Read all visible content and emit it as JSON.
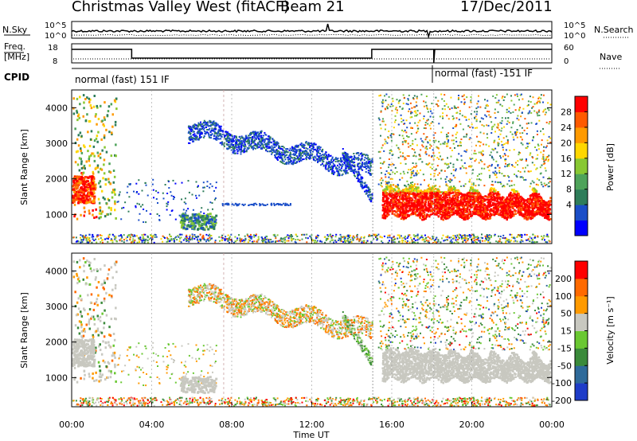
{
  "header": {
    "station": "Christmas Valley West (fitACF)",
    "beam": "Beam 21",
    "date": "17/Dec/2011"
  },
  "top_panels": {
    "nsky_label": "N.Sky",
    "nsearch_label": "N.Search",
    "noise_ticks": [
      "10^5",
      "10^0"
    ],
    "freq_label_1": "Freq.",
    "freq_label_2": "[MHz]",
    "freq_ticks": [
      "18",
      "8"
    ],
    "nave_label": "Nave",
    "nave_ticks": [
      "60",
      "0"
    ],
    "cpid_label": "CPID",
    "mode_1": "normal (fast) 151 IF",
    "mode_2": "normal (fast) -151 IF"
  },
  "chart_data": [
    {
      "type": "heatmap",
      "name": "power",
      "ylabel": "Slant Range [km]",
      "ylim": [
        180,
        4500
      ],
      "yticks": [
        "4000",
        "3000",
        "2000",
        "1000"
      ],
      "xlim": [
        "00:00",
        "24:00"
      ],
      "colorbar_label": "Power [dB]",
      "colorbar_ticks": [
        "28",
        "24",
        "20",
        "16",
        "12",
        "8",
        "4"
      ],
      "colorbar_colors": [
        "#0000ff",
        "#1a4ec8",
        "#2e7d5a",
        "#4ea35a",
        "#88c832",
        "#ffd700",
        "#ff9a00",
        "#ff5a00",
        "#ff0000"
      ]
    },
    {
      "type": "heatmap",
      "name": "velocity",
      "ylabel": "Slant Range [km]",
      "ylim": [
        180,
        4500
      ],
      "yticks": [
        "4000",
        "3000",
        "2000",
        "1000"
      ],
      "xlim": [
        "00:00",
        "24:00"
      ],
      "colorbar_label": "Velocity [m s⁻¹]",
      "colorbar_ticks": [
        "200",
        "100",
        "50",
        "15",
        "-15",
        "-50",
        "-100",
        "-200"
      ],
      "colorbar_colors": [
        "#1e3cc8",
        "#2e6a9a",
        "#3a8a3a",
        "#6ac832",
        "#c8c8c0",
        "#ff9a00",
        "#ff6a00",
        "#ff0000"
      ]
    }
  ],
  "xaxis": {
    "ticks": [
      "00:00",
      "04:00",
      "08:00",
      "12:00",
      "16:00",
      "20:00",
      "00:00"
    ],
    "label": "Time UT"
  }
}
